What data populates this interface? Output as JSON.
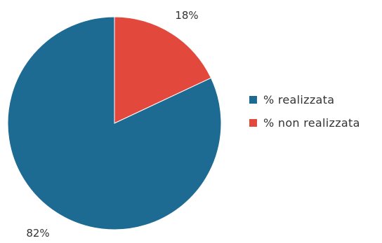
{
  "chart_data": {
    "type": "pie",
    "title": "",
    "start_angle_deg": 0,
    "direction": "clockwise",
    "slices": [
      {
        "label": "% non realizzata",
        "value": 18,
        "display": "18%",
        "color": "#e2483b"
      },
      {
        "label": "% realizzata",
        "value": 82,
        "display": "82%",
        "color": "#1d6a93"
      }
    ],
    "legend": {
      "position": "right",
      "items": [
        {
          "label": "% realizzata",
          "color": "#1d6a93"
        },
        {
          "label": "% non realizzata",
          "color": "#e2483b"
        }
      ]
    }
  }
}
